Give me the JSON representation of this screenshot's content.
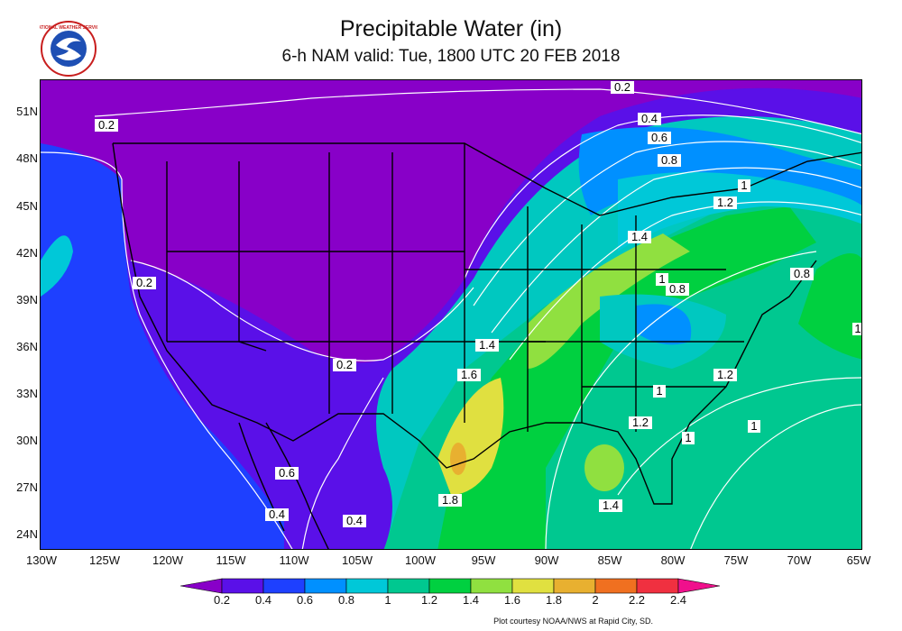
{
  "header": {
    "title": "Precipitable Water (in)",
    "subtitle": "6-h NAM valid: Tue, 1800 UTC 20 FEB 2018"
  },
  "logo": {
    "text": "NATIONAL WEATHER SERVICE",
    "icon": "nws-logo-icon"
  },
  "axes": {
    "lat_labels": [
      "51N",
      "48N",
      "45N",
      "42N",
      "39N",
      "36N",
      "33N",
      "30N",
      "27N",
      "24N"
    ],
    "lon_labels": [
      "130W",
      "125W",
      "120W",
      "115W",
      "110W",
      "105W",
      "100W",
      "95W",
      "90W",
      "85W",
      "80W",
      "75W",
      "70W",
      "65W"
    ]
  },
  "contour_labels": [
    "0.2",
    "0.4",
    "0.6",
    "0.8",
    "1",
    "1.2",
    "0.2",
    "0.2",
    "0.2",
    "1.4",
    "1.6",
    "1.8",
    "1.4",
    "1",
    "0.8",
    "0.8",
    "1",
    "1.2",
    "1.2",
    "1",
    "1",
    "1",
    "1.4",
    "0.6",
    "0.4",
    "0.4"
  ],
  "color_scale": {
    "labels": [
      "0.2",
      "0.4",
      "0.6",
      "0.8",
      "1",
      "1.2",
      "1.4",
      "1.6",
      "1.8",
      "2",
      "2.2",
      "2.4"
    ],
    "colors": [
      "#8800c8",
      "#5a10e8",
      "#1e40ff",
      "#0090ff",
      "#00c8d8",
      "#00c890",
      "#00d040",
      "#90e040",
      "#e0e040",
      "#e8b030",
      "#f07020",
      "#f03040",
      "#f0108c"
    ]
  },
  "credit": "Plot courtesy NOAA/NWS at Rapid City, SD."
}
